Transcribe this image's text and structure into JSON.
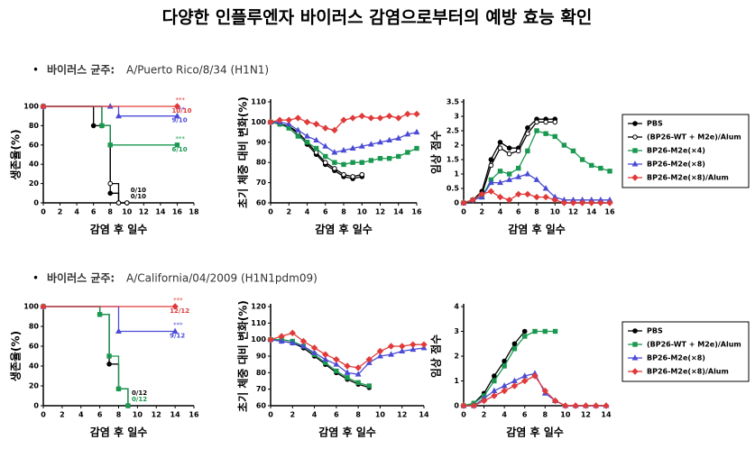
{
  "title": "다양한 인플루엔자 바이러스 감염으로부터의 예방 효능 확인",
  "sections": [
    {
      "label": "바이러스 균주:",
      "strain": "A/Puerto Rico/8/34 (H1N1)"
    },
    {
      "label": "바이러스 균주:",
      "strain": "A/California/04/2009 (H1N1pdm09)"
    }
  ],
  "chart_data": [
    {
      "type": "step",
      "xlabel": "감염 후 일수",
      "ylabel": "생존율(%)",
      "xlim": [
        0,
        18
      ],
      "xticks": [
        0,
        2,
        4,
        6,
        8,
        10,
        12,
        14,
        16,
        18
      ],
      "ylim": [
        0,
        100
      ],
      "yticks": [
        0,
        20,
        40,
        60,
        80,
        100
      ],
      "series": [
        {
          "color": "#000000",
          "marker": "dot",
          "x": [
            0,
            6,
            8,
            9,
            10
          ],
          "values": [
            100,
            80,
            10,
            0,
            0
          ],
          "end_label": "0/10"
        },
        {
          "color": "#000000",
          "marker": "ring",
          "x": [
            0,
            7,
            8,
            9,
            10
          ],
          "values": [
            100,
            80,
            20,
            0,
            0
          ],
          "end_label": "0/10"
        },
        {
          "color": "#1a9850",
          "marker": "square",
          "x": [
            0,
            7,
            8,
            16
          ],
          "values": [
            100,
            80,
            60,
            60
          ],
          "end_label": "6/10",
          "sig": "***"
        },
        {
          "color": "#4b4bd6",
          "marker": "triangle",
          "x": [
            0,
            8,
            9,
            16
          ],
          "values": [
            100,
            100,
            90,
            90
          ],
          "end_label": "9/10",
          "sig": "***"
        },
        {
          "color": "#e03a3a",
          "marker": "diamond",
          "x": [
            0,
            16
          ],
          "values": [
            100,
            100
          ],
          "end_label": "10/10",
          "sig": "***"
        }
      ]
    },
    {
      "type": "line",
      "xlabel": "감염 후 일수",
      "ylabel": "초기 체중 대비 변화(%)",
      "xlim": [
        0,
        16
      ],
      "xticks": [
        0,
        2,
        4,
        6,
        8,
        10,
        12,
        14,
        16
      ],
      "ylim": [
        60,
        110
      ],
      "yticks": [
        60,
        70,
        80,
        90,
        100,
        110
      ],
      "series": [
        {
          "color": "#000000",
          "marker": "dot",
          "x": [
            0,
            1,
            2,
            3,
            4,
            5,
            6,
            7,
            8,
            9,
            10
          ],
          "values": [
            100,
            99,
            98,
            94,
            89,
            84,
            79,
            76,
            73,
            72,
            73
          ]
        },
        {
          "color": "#000000",
          "marker": "ring",
          "x": [
            0,
            1,
            2,
            3,
            4,
            5,
            6,
            7,
            8,
            9,
            10
          ],
          "values": [
            100,
            99,
            98,
            95,
            90,
            85,
            80,
            77,
            74,
            73,
            74
          ]
        },
        {
          "color": "#1a9850",
          "marker": "square",
          "x": [
            0,
            1,
            2,
            3,
            4,
            5,
            6,
            7,
            8,
            9,
            10,
            11,
            12,
            13,
            14,
            15,
            16
          ],
          "values": [
            100,
            99,
            97,
            93,
            90,
            87,
            83,
            80,
            79,
            80,
            80,
            81,
            82,
            82,
            83,
            85,
            87
          ]
        },
        {
          "color": "#4b4bd6",
          "marker": "triangle",
          "x": [
            0,
            1,
            2,
            3,
            4,
            5,
            6,
            7,
            8,
            9,
            10,
            11,
            12,
            13,
            14,
            15,
            16
          ],
          "values": [
            100,
            100,
            99,
            96,
            93,
            91,
            88,
            85,
            86,
            87,
            88,
            89,
            90,
            91,
            92,
            94,
            95
          ]
        },
        {
          "color": "#e03a3a",
          "marker": "diamond",
          "x": [
            0,
            1,
            2,
            3,
            4,
            5,
            6,
            7,
            8,
            9,
            10,
            11,
            12,
            13,
            14,
            15,
            16
          ],
          "values": [
            100,
            101,
            101,
            102,
            100,
            99,
            97,
            96,
            101,
            102,
            103,
            102,
            102,
            103,
            102,
            104,
            104
          ]
        }
      ]
    },
    {
      "type": "line",
      "xlabel": "감염 후 일수",
      "ylabel": "임상 점수",
      "xlim": [
        0,
        16
      ],
      "xticks": [
        0,
        2,
        4,
        6,
        8,
        10,
        12,
        14,
        16
      ],
      "ylim": [
        0,
        3.5
      ],
      "yticks": [
        0,
        0.5,
        1,
        1.5,
        2,
        2.5,
        3,
        3.5
      ],
      "legend": true,
      "series": [
        {
          "name": "PBS",
          "color": "#000000",
          "marker": "dot",
          "x": [
            0,
            1,
            2,
            3,
            4,
            5,
            6,
            7,
            8,
            9,
            10
          ],
          "values": [
            0,
            0.1,
            0.4,
            1.5,
            2.1,
            1.9,
            1.9,
            2.6,
            2.9,
            2.9,
            2.9
          ]
        },
        {
          "name": "(BP26-WT + M2e)/Alum",
          "color": "#000000",
          "marker": "ring",
          "x": [
            0,
            1,
            2,
            3,
            4,
            5,
            6,
            7,
            8,
            9,
            10
          ],
          "values": [
            0,
            0.1,
            0.3,
            1.3,
            1.9,
            1.7,
            1.8,
            2.4,
            2.8,
            2.8,
            2.8
          ]
        },
        {
          "name": "BP26-M2e(×4)",
          "color": "#1a9850",
          "marker": "square",
          "x": [
            0,
            1,
            2,
            3,
            4,
            5,
            6,
            7,
            8,
            9,
            10,
            11,
            12,
            13,
            14,
            15,
            16
          ],
          "values": [
            0,
            0.1,
            0.2,
            0.8,
            1.1,
            1,
            1.2,
            1.8,
            2.5,
            2.4,
            2.3,
            2,
            1.8,
            1.5,
            1.3,
            1.2,
            1.1
          ]
        },
        {
          "name": "BP26-M2e(×8)",
          "color": "#4b4bd6",
          "marker": "triangle",
          "x": [
            0,
            1,
            2,
            3,
            4,
            5,
            6,
            7,
            8,
            9,
            10,
            11,
            12,
            13,
            14,
            15,
            16
          ],
          "values": [
            0,
            0.1,
            0.2,
            0.7,
            0.7,
            0.8,
            0.9,
            1,
            0.8,
            0.5,
            0.2,
            0.1,
            0.1,
            0.1,
            0.1,
            0.1,
            0.1
          ]
        },
        {
          "name": "BP26-M2e(×8)/Alum",
          "color": "#e03a3a",
          "marker": "diamond",
          "x": [
            0,
            1,
            2,
            3,
            4,
            5,
            6,
            7,
            8,
            9,
            10,
            11,
            12,
            13,
            14,
            15,
            16
          ],
          "values": [
            0,
            0.1,
            0.3,
            0.4,
            0.2,
            0.1,
            0.3,
            0.3,
            0.2,
            0.2,
            0.1,
            0,
            0,
            0,
            0,
            0,
            0
          ]
        }
      ]
    },
    {
      "type": "step",
      "xlabel": "감염 후 일수",
      "ylabel": "생존율(%)",
      "xlim": [
        0,
        16
      ],
      "xticks": [
        0,
        2,
        4,
        6,
        8,
        10,
        12,
        14,
        16
      ],
      "ylim": [
        0,
        100
      ],
      "yticks": [
        0,
        20,
        40,
        60,
        80,
        100
      ],
      "series": [
        {
          "color": "#000000",
          "marker": "dot",
          "x": [
            0,
            6,
            7,
            8,
            9
          ],
          "values": [
            100,
            92,
            42,
            17,
            0
          ],
          "end_label": "0/12"
        },
        {
          "color": "#1a9850",
          "marker": "square",
          "x": [
            0,
            6,
            7,
            8,
            9
          ],
          "values": [
            100,
            92,
            50,
            17,
            0
          ],
          "end_label": "0/12"
        },
        {
          "color": "#4b4bd6",
          "marker": "triangle",
          "x": [
            0,
            8,
            14
          ],
          "values": [
            100,
            75,
            75
          ],
          "end_label": "9/12",
          "sig": "***"
        },
        {
          "color": "#e03a3a",
          "marker": "diamond",
          "x": [
            0,
            14
          ],
          "values": [
            100,
            100
          ],
          "end_label": "12/12",
          "sig": "***"
        }
      ]
    },
    {
      "type": "line",
      "xlabel": "감염 후 일수",
      "ylabel": "초기 체중 대비 변화(%)",
      "xlim": [
        0,
        14
      ],
      "xticks": [
        0,
        2,
        4,
        6,
        8,
        10,
        12,
        14
      ],
      "ylim": [
        60,
        120
      ],
      "yticks": [
        60,
        70,
        80,
        90,
        100,
        110,
        120
      ],
      "series": [
        {
          "color": "#000000",
          "marker": "dot",
          "x": [
            0,
            1,
            2,
            3,
            4,
            5,
            6,
            7,
            8,
            9
          ],
          "values": [
            100,
            99,
            98,
            95,
            90,
            85,
            80,
            76,
            73,
            71
          ]
        },
        {
          "color": "#1a9850",
          "marker": "square",
          "x": [
            0,
            1,
            2,
            3,
            4,
            5,
            6,
            7,
            8,
            9
          ],
          "values": [
            100,
            100,
            99,
            96,
            91,
            86,
            81,
            77,
            74,
            72
          ]
        },
        {
          "color": "#4b4bd6",
          "marker": "triangle",
          "x": [
            0,
            1,
            2,
            3,
            4,
            5,
            6,
            7,
            8,
            9,
            10,
            11,
            12,
            13,
            14
          ],
          "values": [
            100,
            99,
            98,
            96,
            92,
            88,
            85,
            80,
            79,
            86,
            90,
            91,
            93,
            94,
            95
          ]
        },
        {
          "color": "#e03a3a",
          "marker": "diamond",
          "x": [
            0,
            1,
            2,
            3,
            4,
            5,
            6,
            7,
            8,
            9,
            10,
            11,
            12,
            13,
            14
          ],
          "values": [
            100,
            102,
            104,
            99,
            95,
            91,
            88,
            84,
            83,
            88,
            93,
            96,
            96,
            97,
            97
          ]
        }
      ]
    },
    {
      "type": "line",
      "xlabel": "감염 후 일수",
      "ylabel": "임상 점수",
      "xlim": [
        0,
        14
      ],
      "xticks": [
        0,
        2,
        4,
        6,
        8,
        10,
        12,
        14
      ],
      "ylim": [
        0,
        4
      ],
      "yticks": [
        0,
        1,
        2,
        3,
        4
      ],
      "legend": true,
      "series": [
        {
          "name": "PBS",
          "color": "#000000",
          "marker": "dot",
          "x": [
            0,
            1,
            2,
            3,
            4,
            5,
            6
          ],
          "values": [
            0,
            0.1,
            0.5,
            1.2,
            1.8,
            2.5,
            3
          ]
        },
        {
          "name": "(BP26-WT + M2e)/Alum",
          "color": "#1a9850",
          "marker": "square",
          "x": [
            0,
            1,
            2,
            3,
            4,
            5,
            6,
            7,
            8,
            9
          ],
          "values": [
            0,
            0.1,
            0.4,
            1,
            1.6,
            2.3,
            2.8,
            3,
            3,
            3
          ]
        },
        {
          "name": "BP26-M2e(×8)",
          "color": "#4b4bd6",
          "marker": "triangle",
          "x": [
            0,
            1,
            2,
            3,
            4,
            5,
            6,
            7,
            8,
            9,
            10,
            11,
            12,
            13,
            14
          ],
          "values": [
            0,
            0,
            0.3,
            0.6,
            0.8,
            1,
            1.2,
            1.3,
            0.5,
            0.2,
            0,
            0,
            0,
            0,
            0
          ]
        },
        {
          "name": "BP26-M2e(×8)/Alum",
          "color": "#e03a3a",
          "marker": "diamond",
          "x": [
            0,
            1,
            2,
            3,
            4,
            5,
            6,
            7,
            8,
            9,
            10,
            11,
            12,
            13,
            14
          ],
          "values": [
            0,
            0,
            0.2,
            0.4,
            0.6,
            0.8,
            1,
            1.2,
            0.6,
            0.2,
            0,
            0,
            0,
            0,
            0
          ]
        }
      ]
    }
  ]
}
